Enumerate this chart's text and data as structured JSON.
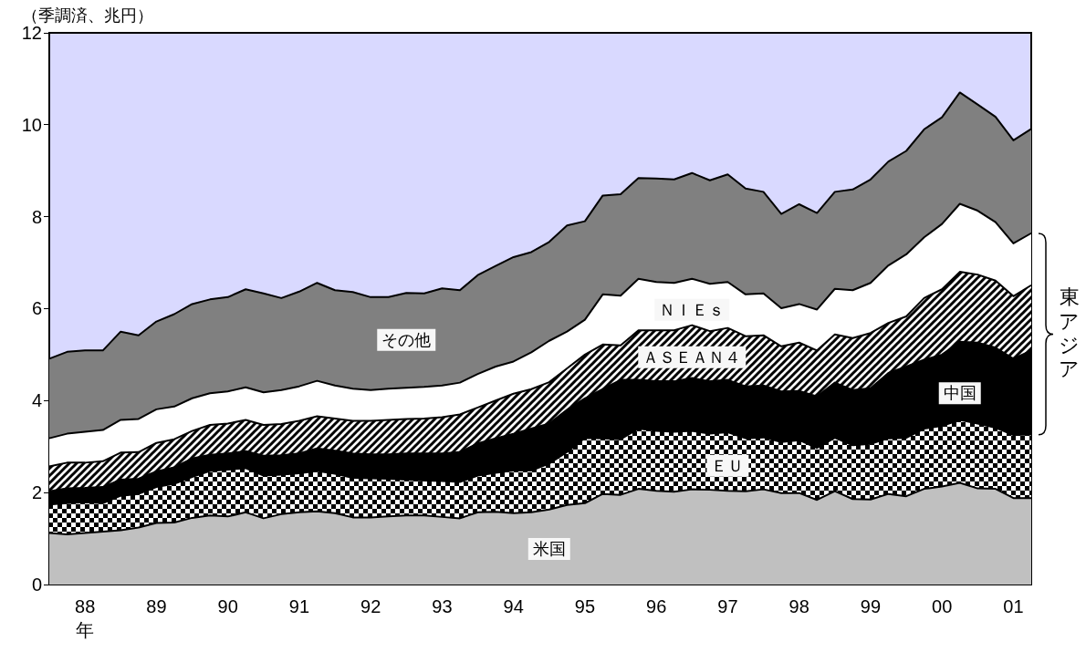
{
  "chart_data": {
    "type": "area",
    "stacked": true,
    "ylabel": "（季調済、兆円）",
    "xlabel": "年",
    "categories": [
      null,
      null,
      "88",
      null,
      null,
      null,
      "89",
      null,
      null,
      null,
      "90",
      null,
      null,
      null,
      "91",
      null,
      null,
      null,
      "92",
      null,
      null,
      null,
      "93",
      null,
      null,
      null,
      "94",
      null,
      null,
      null,
      "95",
      null,
      null,
      null,
      "96",
      null,
      null,
      null,
      "97",
      null,
      null,
      null,
      "98",
      null,
      null,
      null,
      "99",
      null,
      null,
      null,
      "00",
      null,
      null,
      null,
      "01",
      null
    ],
    "ylim": [
      0,
      12
    ],
    "yticks": [
      0,
      2,
      4,
      6,
      8,
      10,
      12
    ],
    "series": [
      {
        "name": "米国",
        "color": "#c0c0c0",
        "values": [
          1.12,
          1.09,
          1.12,
          1.15,
          1.18,
          1.24,
          1.34,
          1.35,
          1.45,
          1.5,
          1.48,
          1.57,
          1.44,
          1.53,
          1.57,
          1.59,
          1.55,
          1.46,
          1.46,
          1.48,
          1.5,
          1.5,
          1.47,
          1.44,
          1.57,
          1.58,
          1.55,
          1.57,
          1.63,
          1.73,
          1.77,
          1.97,
          1.95,
          2.08,
          2.04,
          2.02,
          2.07,
          2.06,
          2.04,
          2.03,
          2.07,
          1.99,
          1.99,
          1.84,
          2.03,
          1.86,
          1.85,
          1.97,
          1.92,
          2.08,
          2.13,
          2.21,
          2.09,
          2.08,
          1.88,
          1.88
        ]
      },
      {
        "name": "ＥＵ",
        "color": "#000000",
        "values": [
          0.62,
          0.68,
          0.67,
          0.62,
          0.75,
          0.73,
          0.78,
          0.84,
          0.89,
          0.97,
          1.02,
          0.96,
          0.93,
          0.86,
          0.85,
          0.88,
          0.86,
          0.86,
          0.85,
          0.82,
          0.78,
          0.76,
          0.78,
          0.79,
          0.8,
          0.85,
          0.93,
          0.91,
          1.0,
          1.15,
          1.42,
          1.21,
          1.21,
          1.31,
          1.3,
          1.3,
          1.27,
          1.22,
          1.27,
          1.15,
          1.13,
          1.11,
          1.15,
          1.13,
          1.16,
          1.17,
          1.21,
          1.21,
          1.27,
          1.31,
          1.32,
          1.37,
          1.41,
          1.33,
          1.37,
          1.38
        ]
      },
      {
        "name": "中国",
        "color": "#000000",
        "values": [
          0.29,
          0.32,
          0.31,
          0.35,
          0.35,
          0.33,
          0.34,
          0.36,
          0.4,
          0.35,
          0.35,
          0.37,
          0.43,
          0.42,
          0.43,
          0.49,
          0.5,
          0.53,
          0.52,
          0.53,
          0.57,
          0.59,
          0.6,
          0.65,
          0.7,
          0.75,
          0.8,
          0.91,
          0.87,
          0.92,
          0.86,
          1.07,
          1.29,
          1.06,
          1.08,
          1.1,
          1.15,
          1.14,
          1.14,
          1.13,
          1.13,
          1.1,
          1.07,
          1.12,
          1.2,
          1.2,
          1.21,
          1.42,
          1.55,
          1.5,
          1.55,
          1.7,
          1.76,
          1.74,
          1.66,
          1.83
        ]
      },
      {
        "name": "ＡＳＥＡＮ４",
        "color": "#000000",
        "values": [
          0.54,
          0.56,
          0.55,
          0.56,
          0.59,
          0.58,
          0.62,
          0.61,
          0.6,
          0.65,
          0.65,
          0.68,
          0.67,
          0.68,
          0.71,
          0.7,
          0.7,
          0.71,
          0.73,
          0.75,
          0.75,
          0.76,
          0.79,
          0.82,
          0.78,
          0.82,
          0.87,
          0.86,
          0.9,
          0.9,
          0.95,
          0.97,
          0.75,
          1.08,
          1.11,
          1.11,
          1.15,
          1.09,
          1.13,
          1.09,
          1.09,
          0.98,
          1.05,
          1.0,
          1.05,
          1.13,
          1.2,
          1.09,
          1.09,
          1.34,
          1.42,
          1.52,
          1.48,
          1.46,
          1.36,
          1.42
        ]
      },
      {
        "name": "ＮＩＥｓ",
        "color": "#ffffff",
        "values": [
          0.61,
          0.63,
          0.67,
          0.68,
          0.71,
          0.72,
          0.73,
          0.71,
          0.71,
          0.69,
          0.7,
          0.71,
          0.71,
          0.74,
          0.75,
          0.77,
          0.72,
          0.7,
          0.67,
          0.68,
          0.68,
          0.69,
          0.69,
          0.69,
          0.73,
          0.74,
          0.7,
          0.8,
          0.9,
          0.8,
          0.76,
          1.09,
          1.08,
          1.12,
          1.05,
          1.03,
          1.01,
          1.03,
          1.0,
          0.91,
          0.91,
          0.83,
          0.84,
          0.89,
          0.99,
          1.04,
          1.09,
          1.25,
          1.35,
          1.32,
          1.42,
          1.48,
          1.39,
          1.27,
          1.15,
          1.13
        ]
      },
      {
        "name": "その他",
        "color": "#808080",
        "values": [
          1.73,
          1.78,
          1.77,
          1.73,
          1.92,
          1.82,
          1.91,
          2.01,
          2.05,
          2.04,
          2.05,
          2.13,
          2.15,
          2.0,
          2.06,
          2.13,
          2.07,
          2.1,
          2.02,
          1.99,
          2.06,
          2.03,
          2.11,
          2.01,
          2.15,
          2.19,
          2.27,
          2.18,
          2.15,
          2.31,
          2.14,
          2.15,
          2.21,
          2.19,
          2.25,
          2.25,
          2.3,
          2.25,
          2.34,
          2.3,
          2.21,
          2.05,
          2.17,
          2.1,
          2.11,
          2.19,
          2.25,
          2.26,
          2.25,
          2.35,
          2.32,
          2.42,
          2.31,
          2.29,
          2.24,
          2.27
        ]
      }
    ],
    "annotations": [
      "東アジア"
    ]
  }
}
